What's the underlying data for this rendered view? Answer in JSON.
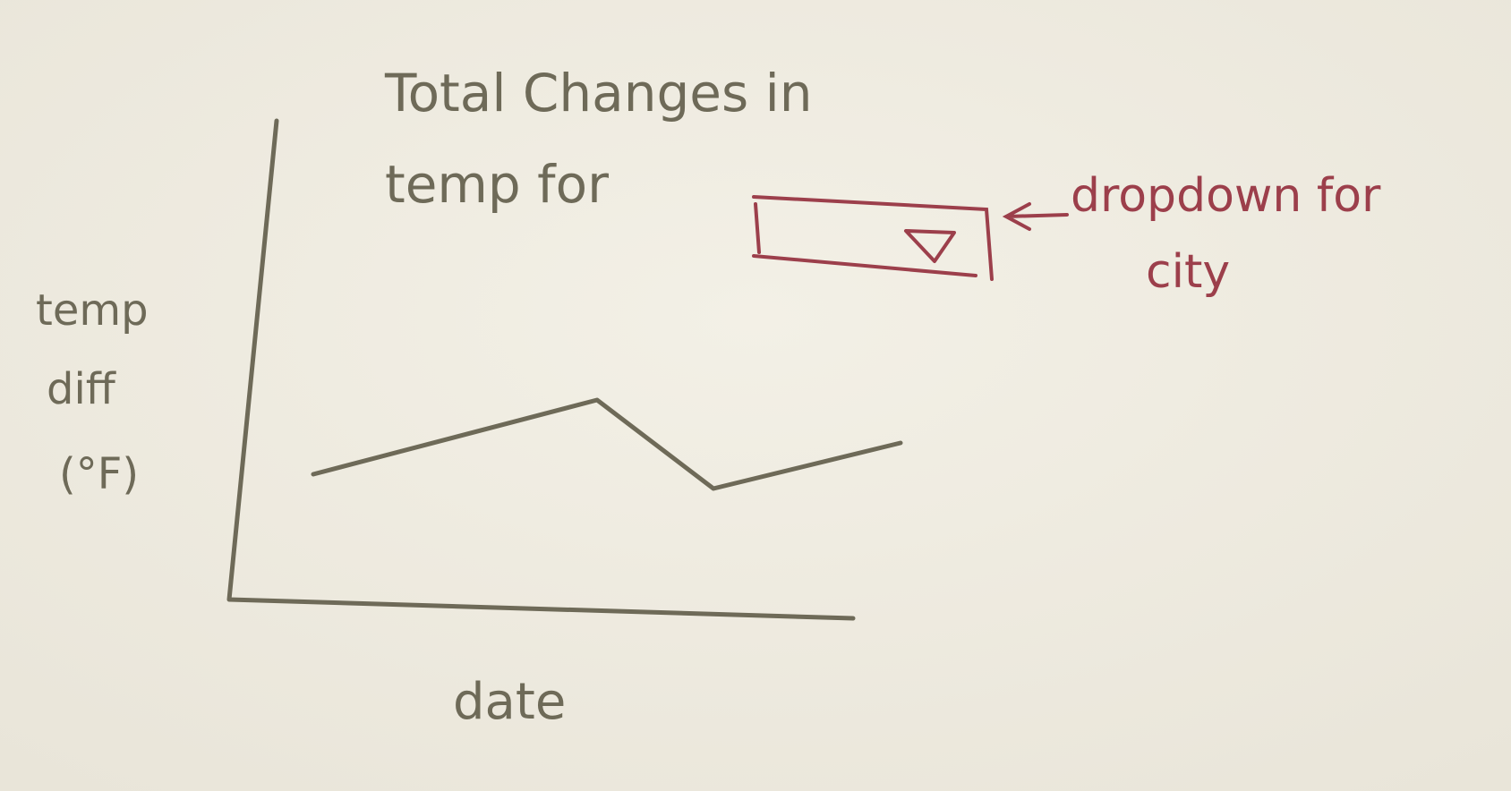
{
  "sketch": {
    "title": [
      "Total Changes in",
      "temp for"
    ],
    "dropdown_note": [
      "dropdown for",
      "city"
    ],
    "y_label": [
      "temp",
      "diff",
      "(°F)"
    ],
    "x_label": "date"
  }
}
